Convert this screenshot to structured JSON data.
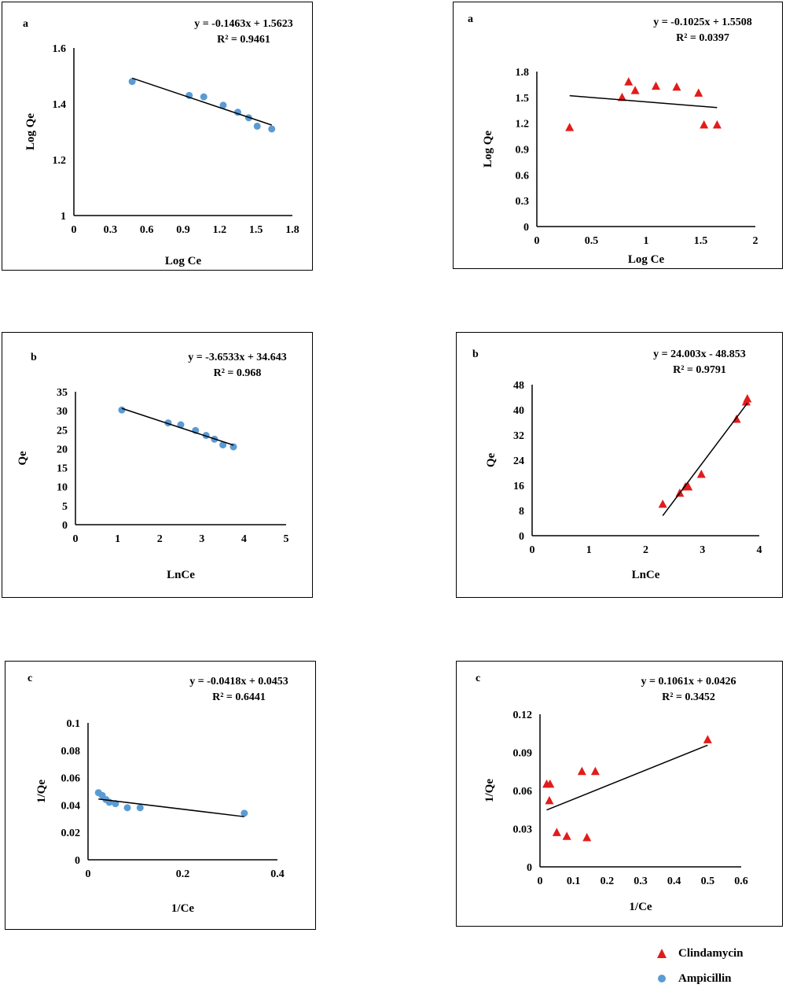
{
  "colors": {
    "ampicillin": "#5b9bd5",
    "clindamycin": "#e31b1b",
    "trendline": "#000000",
    "axis": "#000000"
  },
  "legend": {
    "items": [
      {
        "label": "Clindamycin",
        "marker": "triangle",
        "color": "#e31b1b"
      },
      {
        "label": "Ampicillin",
        "marker": "circle",
        "color": "#5b9bd5"
      }
    ]
  },
  "chart_data": [
    {
      "id": "amp-a",
      "type": "scatter",
      "panel_label": "a",
      "series_marker": "circle",
      "series_color": "#5b9bd5",
      "equation": "y = -0.1463x + 1.5623",
      "r2": "R² = 0.9461",
      "xlabel": "Log Ce",
      "ylabel": "Log Qe",
      "xlim": [
        0,
        1.8
      ],
      "ylim": [
        1,
        1.6
      ],
      "xticks": [
        "0",
        "0.3",
        "0.6",
        "0.9",
        "1.2",
        "1.5",
        "1.8"
      ],
      "xtick_values": [
        0,
        0.3,
        0.6,
        0.9,
        1.2,
        1.5,
        1.8
      ],
      "yticks": [
        "1",
        "1.2",
        "1.4",
        "1.6"
      ],
      "ytick_values": [
        1,
        1.2,
        1.4,
        1.6
      ],
      "points": [
        [
          0.48,
          1.48
        ],
        [
          0.95,
          1.43
        ],
        [
          1.07,
          1.425
        ],
        [
          1.23,
          1.395
        ],
        [
          1.35,
          1.37
        ],
        [
          1.44,
          1.35
        ],
        [
          1.51,
          1.32
        ],
        [
          1.63,
          1.31
        ]
      ],
      "trend": [
        [
          0.48,
          1.492
        ],
        [
          1.63,
          1.324
        ]
      ],
      "grid": false
    },
    {
      "id": "cli-a",
      "type": "scatter",
      "panel_label": "a",
      "series_marker": "triangle",
      "series_color": "#e31b1b",
      "equation": "y = -0.1025x + 1.5508",
      "r2": "R² = 0.0397",
      "xlabel": "Log Ce",
      "ylabel": "Log Qe",
      "xlim": [
        0,
        2
      ],
      "ylim": [
        0,
        1.8
      ],
      "xticks": [
        "0",
        "0.5",
        "1",
        "1.5",
        "2"
      ],
      "xtick_values": [
        0,
        0.5,
        1,
        1.5,
        2
      ],
      "yticks": [
        "0",
        "0.3",
        "0.6",
        "0.9",
        "1.2",
        "1.5",
        "1.8"
      ],
      "ytick_values": [
        0,
        0.3,
        0.6,
        0.9,
        1.2,
        1.5,
        1.8
      ],
      "points": [
        [
          0.3,
          1.15
        ],
        [
          0.78,
          1.5
        ],
        [
          0.84,
          1.68
        ],
        [
          0.9,
          1.58
        ],
        [
          1.09,
          1.63
        ],
        [
          1.28,
          1.62
        ],
        [
          1.48,
          1.55
        ],
        [
          1.53,
          1.18
        ],
        [
          1.65,
          1.18
        ]
      ],
      "trend": [
        [
          0.3,
          1.52
        ],
        [
          1.65,
          1.382
        ]
      ],
      "grid": false
    },
    {
      "id": "amp-b",
      "type": "scatter",
      "panel_label": "b",
      "series_marker": "circle",
      "series_color": "#5b9bd5",
      "equation": "y = -3.6533x + 34.643",
      "r2": "R² = 0.968",
      "xlabel": "LnCe",
      "ylabel": "Qe",
      "xlim": [
        0,
        5
      ],
      "ylim": [
        0,
        35
      ],
      "xticks": [
        "0",
        "1",
        "2",
        "3",
        "4",
        "5"
      ],
      "xtick_values": [
        0,
        1,
        2,
        3,
        4,
        5
      ],
      "yticks": [
        "0",
        "5",
        "10",
        "15",
        "20",
        "25",
        "30",
        "35"
      ],
      "ytick_values": [
        0,
        5,
        10,
        15,
        20,
        25,
        30,
        35
      ],
      "points": [
        [
          1.1,
          30.2
        ],
        [
          2.2,
          26.8
        ],
        [
          2.5,
          26.3
        ],
        [
          2.85,
          24.8
        ],
        [
          3.1,
          23.5
        ],
        [
          3.3,
          22.5
        ],
        [
          3.5,
          21.0
        ],
        [
          3.75,
          20.5
        ]
      ],
      "trend": [
        [
          1.1,
          30.62
        ],
        [
          3.75,
          20.94
        ]
      ],
      "grid": false
    },
    {
      "id": "cli-b",
      "type": "scatter",
      "panel_label": "b",
      "series_marker": "triangle",
      "series_color": "#e31b1b",
      "equation": "y = 24.003x - 48.853",
      "r2": "R² = 0.9791",
      "xlabel": "LnCe",
      "ylabel": "Qe",
      "xlim": [
        0,
        4
      ],
      "ylim": [
        0,
        48
      ],
      "xticks": [
        "0",
        "1",
        "2",
        "3",
        "4"
      ],
      "xtick_values": [
        0,
        1,
        2,
        3,
        4
      ],
      "yticks": [
        "0",
        "8",
        "16",
        "24",
        "32",
        "40",
        "48"
      ],
      "ytick_values": [
        0,
        8,
        16,
        24,
        32,
        40,
        48
      ],
      "points": [
        [
          2.3,
          10
        ],
        [
          2.6,
          13.5
        ],
        [
          2.7,
          15.5
        ],
        [
          2.75,
          15.5
        ],
        [
          2.98,
          19.5
        ],
        [
          3.6,
          37
        ],
        [
          3.77,
          42.5
        ],
        [
          3.79,
          43.5
        ]
      ],
      "trend": [
        [
          2.3,
          6.35
        ],
        [
          3.79,
          42.12
        ]
      ],
      "grid": false
    },
    {
      "id": "amp-c",
      "type": "scatter",
      "panel_label": "c",
      "series_marker": "circle",
      "series_color": "#5b9bd5",
      "equation": "y = -0.0418x + 0.0453",
      "r2": "R² = 0.6441",
      "xlabel": "1/Ce",
      "ylabel": "1/Qe",
      "xlim": [
        0,
        0.4
      ],
      "ylim": [
        0,
        0.1
      ],
      "xticks": [
        "0",
        "0.2",
        "0.4"
      ],
      "xtick_values": [
        0,
        0.2,
        0.4
      ],
      "yticks": [
        "0",
        "0.02",
        "0.04",
        "0.06",
        "0.08",
        "0.1"
      ],
      "ytick_values": [
        0,
        0.02,
        0.04,
        0.06,
        0.08,
        0.1
      ],
      "points": [
        [
          0.022,
          0.049
        ],
        [
          0.03,
          0.047
        ],
        [
          0.038,
          0.044
        ],
        [
          0.045,
          0.042
        ],
        [
          0.058,
          0.041
        ],
        [
          0.083,
          0.038
        ],
        [
          0.11,
          0.038
        ],
        [
          0.33,
          0.034
        ]
      ],
      "trend": [
        [
          0.022,
          0.0444
        ],
        [
          0.33,
          0.0315
        ]
      ],
      "grid": false
    },
    {
      "id": "cli-c",
      "type": "scatter",
      "panel_label": "c",
      "series_marker": "triangle",
      "series_color": "#e31b1b",
      "equation": "y = 0.1061x + 0.0426",
      "r2": "R² = 0.3452",
      "xlabel": "1/Ce",
      "ylabel": "1/Qe",
      "xlim": [
        0,
        0.6
      ],
      "ylim": [
        0,
        0.12
      ],
      "xticks": [
        "0",
        "0.1",
        "0.2",
        "0.3",
        "0.4",
        "0.5",
        "0.6"
      ],
      "xtick_values": [
        0,
        0.1,
        0.2,
        0.3,
        0.4,
        0.5,
        0.6
      ],
      "yticks": [
        "0",
        "0.03",
        "0.06",
        "0.09",
        "0.12"
      ],
      "ytick_values": [
        0,
        0.03,
        0.06,
        0.09,
        0.12
      ],
      "points": [
        [
          0.02,
          0.065
        ],
        [
          0.03,
          0.065
        ],
        [
          0.028,
          0.052
        ],
        [
          0.05,
          0.027
        ],
        [
          0.08,
          0.024
        ],
        [
          0.125,
          0.075
        ],
        [
          0.14,
          0.023
        ],
        [
          0.165,
          0.075
        ],
        [
          0.5,
          0.1
        ]
      ],
      "trend": [
        [
          0.02,
          0.0447
        ],
        [
          0.5,
          0.0957
        ]
      ],
      "grid": false
    }
  ]
}
